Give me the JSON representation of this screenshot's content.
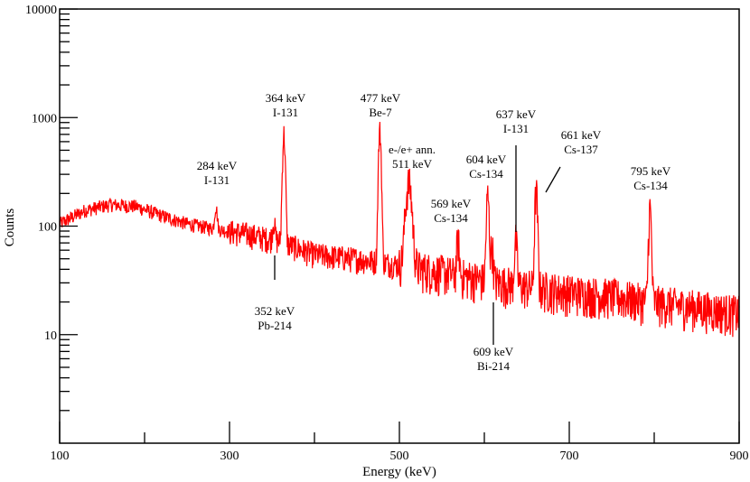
{
  "chart_data": {
    "type": "line",
    "title": "",
    "xlabel": "Energy (keV)",
    "ylabel": "Counts",
    "xlim": [
      100,
      900
    ],
    "ylim": [
      1,
      10000
    ],
    "yscale": "log",
    "x_ticks": [
      "100",
      "300",
      "500",
      "700",
      "900"
    ],
    "x_tick_values": [
      100,
      300,
      500,
      700,
      900
    ],
    "x_minor_tick_values": [
      200,
      400,
      600,
      800
    ],
    "y_ticks": [
      "10",
      "100",
      "1000",
      "10000"
    ],
    "y_tick_values": [
      10,
      100,
      1000,
      10000
    ],
    "series_color": "#ff0000",
    "grid": false,
    "legend": "none",
    "continuum": {
      "energy_keV": [
        100,
        130,
        160,
        190,
        220,
        250,
        280,
        320,
        360,
        400,
        450,
        500,
        550,
        600,
        650,
        700,
        750,
        800,
        850,
        900
      ],
      "counts": [
        105,
        140,
        158,
        152,
        125,
        105,
        95,
        85,
        72,
        55,
        50,
        44,
        38,
        32,
        28,
        25,
        23,
        20,
        18,
        16
      ]
    },
    "peaks": [
      {
        "energy_keV": 284,
        "counts": 150
      },
      {
        "energy_keV": 352,
        "counts": 110
      },
      {
        "energy_keV": 364,
        "counts": 700
      },
      {
        "energy_keV": 477,
        "counts": 750
      },
      {
        "energy_keV": 511,
        "counts": 250
      },
      {
        "energy_keV": 569,
        "counts": 75
      },
      {
        "energy_keV": 604,
        "counts": 190
      },
      {
        "energy_keV": 609,
        "counts": 65
      },
      {
        "energy_keV": 637,
        "counts": 75
      },
      {
        "energy_keV": 661,
        "counts": 210
      },
      {
        "energy_keV": 795,
        "counts": 145
      }
    ],
    "annotations": [
      {
        "line1": "284 keV",
        "line2": "I-131"
      },
      {
        "line1": "364 keV",
        "line2": "I-131"
      },
      {
        "line1": "477 keV",
        "line2": "Be-7"
      },
      {
        "line1": "e-/e+ ann.",
        "line2": "511 keV"
      },
      {
        "line1": "569 keV",
        "line2": "Cs-134"
      },
      {
        "line1": "604 keV",
        "line2": "Cs-134"
      },
      {
        "line1": "637 keV",
        "line2": "I-131"
      },
      {
        "line1": "661 keV",
        "line2": "Cs-137"
      },
      {
        "line1": "795 keV",
        "line2": "Cs-134"
      },
      {
        "line1": "352 keV",
        "line2": "Pb-214"
      },
      {
        "line1": "609 keV",
        "line2": "Bi-214"
      }
    ]
  }
}
